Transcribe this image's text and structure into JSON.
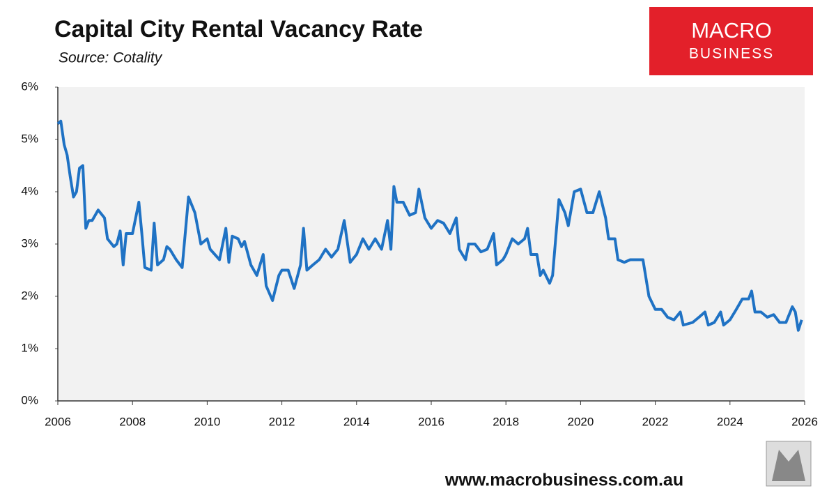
{
  "chart_data": {
    "type": "line",
    "title": "Capital City Rental Vacancy Rate",
    "subtitle": "Source: Cotality",
    "logo": [
      "MACRO",
      "BUSINESS"
    ],
    "footer": "www.macrobusiness.com.au",
    "xlim": [
      2006,
      2026
    ],
    "xticks": [
      2006,
      2008,
      2010,
      2012,
      2014,
      2016,
      2018,
      2020,
      2022,
      2024,
      2026
    ],
    "ylim": [
      0,
      6
    ],
    "yticks": [
      {
        "value": 0,
        "label": "0%"
      },
      {
        "value": 1,
        "label": "1%"
      },
      {
        "value": 2,
        "label": "2%"
      },
      {
        "value": 3,
        "label": "3%"
      },
      {
        "value": 4,
        "label": "4%"
      },
      {
        "value": 5,
        "label": "5%"
      },
      {
        "value": 6,
        "label": "6%"
      }
    ],
    "grid": false,
    "background": "#f2f2f2",
    "x": [
      2006.0,
      2006.08,
      2006.17,
      2006.25,
      2006.33,
      2006.42,
      2006.5,
      2006.58,
      2006.67,
      2006.75,
      2006.83,
      2006.92,
      2007.0,
      2007.08,
      2007.25,
      2007.33,
      2007.5,
      2007.58,
      2007.67,
      2007.75,
      2007.83,
      2008.0,
      2008.17,
      2008.25,
      2008.33,
      2008.5,
      2008.58,
      2008.67,
      2008.83,
      2008.92,
      2009.0,
      2009.17,
      2009.33,
      2009.5,
      2009.67,
      2009.83,
      2010.0,
      2010.08,
      2010.33,
      2010.5,
      2010.58,
      2010.67,
      2010.83,
      2010.92,
      2011.0,
      2011.17,
      2011.33,
      2011.5,
      2011.58,
      2011.75,
      2011.92,
      2012.0,
      2012.17,
      2012.33,
      2012.5,
      2012.58,
      2012.67,
      2012.83,
      2013.0,
      2013.17,
      2013.33,
      2013.5,
      2013.67,
      2013.83,
      2014.0,
      2014.17,
      2014.33,
      2014.5,
      2014.67,
      2014.83,
      2014.92,
      2015.0,
      2015.08,
      2015.25,
      2015.42,
      2015.58,
      2015.67,
      2015.83,
      2016.0,
      2016.17,
      2016.33,
      2016.5,
      2016.67,
      2016.75,
      2016.92,
      2017.0,
      2017.17,
      2017.33,
      2017.5,
      2017.67,
      2017.75,
      2017.92,
      2018.0,
      2018.17,
      2018.33,
      2018.5,
      2018.58,
      2018.67,
      2018.83,
      2018.92,
      2019.0,
      2019.17,
      2019.25,
      2019.42,
      2019.58,
      2019.67,
      2019.83,
      2020.0,
      2020.17,
      2020.33,
      2020.5,
      2020.67,
      2020.75,
      2020.92,
      2021.0,
      2021.17,
      2021.33,
      2021.5,
      2021.67,
      2021.83,
      2022.0,
      2022.17,
      2022.33,
      2022.5,
      2022.67,
      2022.75,
      2023.0,
      2023.17,
      2023.33,
      2023.42,
      2023.58,
      2023.75,
      2023.83,
      2024.0,
      2024.17,
      2024.33,
      2024.5,
      2024.58,
      2024.67,
      2024.83,
      2025.0,
      2025.17,
      2025.33,
      2025.5,
      2025.67,
      2025.75,
      2025.83,
      2025.92
    ],
    "series": [
      {
        "name": "Vacancy rate",
        "color": "#1f72c4",
        "values": [
          5.3,
          5.35,
          4.9,
          4.7,
          4.3,
          3.9,
          4.0,
          4.45,
          4.5,
          3.3,
          3.45,
          3.45,
          3.55,
          3.65,
          3.5,
          3.1,
          2.95,
          3.0,
          3.25,
          2.6,
          3.2,
          3.2,
          3.8,
          3.2,
          2.55,
          2.5,
          3.4,
          2.6,
          2.7,
          2.95,
          2.9,
          2.7,
          2.55,
          3.9,
          3.6,
          3.0,
          3.1,
          2.9,
          2.7,
          3.3,
          2.65,
          3.15,
          3.1,
          2.95,
          3.05,
          2.6,
          2.4,
          2.8,
          2.2,
          1.92,
          2.4,
          2.5,
          2.5,
          2.15,
          2.6,
          3.3,
          2.5,
          2.6,
          2.7,
          2.9,
          2.75,
          2.9,
          3.45,
          2.65,
          2.8,
          3.1,
          2.9,
          3.1,
          2.9,
          3.45,
          2.9,
          4.1,
          3.8,
          3.8,
          3.55,
          3.6,
          4.05,
          3.5,
          3.3,
          3.45,
          3.4,
          3.2,
          3.5,
          2.9,
          2.7,
          3.0,
          3.0,
          2.85,
          2.9,
          3.2,
          2.6,
          2.7,
          2.8,
          3.1,
          3.0,
          3.1,
          3.3,
          2.8,
          2.8,
          2.4,
          2.5,
          2.25,
          2.4,
          3.85,
          3.6,
          3.35,
          4.0,
          4.05,
          3.6,
          3.6,
          4.0,
          3.5,
          3.1,
          3.1,
          2.7,
          2.65,
          2.7,
          2.7,
          2.7,
          2.0,
          1.75,
          1.75,
          1.6,
          1.55,
          1.7,
          1.45,
          1.5,
          1.6,
          1.7,
          1.45,
          1.5,
          1.7,
          1.45,
          1.55,
          1.75,
          1.95,
          1.95,
          2.1,
          1.7,
          1.7,
          1.6,
          1.65,
          1.5,
          1.5,
          1.8,
          1.7,
          1.35,
          1.55
        ]
      }
    ]
  }
}
